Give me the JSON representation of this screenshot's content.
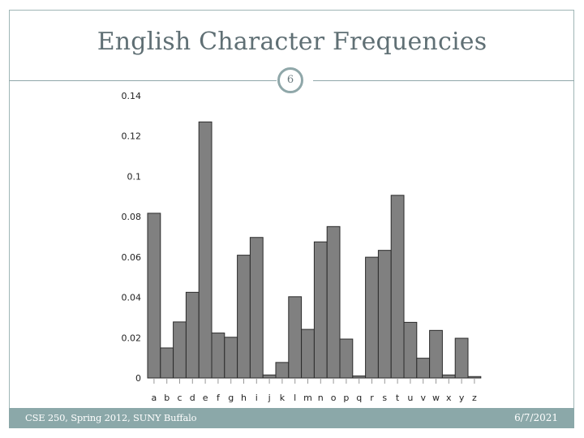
{
  "slide": {
    "title": "English Character Frequencies",
    "page_number": "6",
    "footer_left": "CSE 250, Spring 2012, SUNY Buffalo",
    "footer_right": "6/7/2021"
  },
  "colors": {
    "bar_fill": "#808080",
    "bar_stroke": "#2b2b2b",
    "accent": "#8ba8a9"
  },
  "chart_data": {
    "type": "bar",
    "title": "",
    "xlabel": "",
    "ylabel": "",
    "categories": [
      "a",
      "b",
      "c",
      "d",
      "e",
      "f",
      "g",
      "h",
      "i",
      "j",
      "k",
      "l",
      "m",
      "n",
      "o",
      "p",
      "q",
      "r",
      "s",
      "t",
      "u",
      "v",
      "w",
      "x",
      "y",
      "z"
    ],
    "values": [
      0.0817,
      0.0149,
      0.0278,
      0.0425,
      0.127,
      0.0223,
      0.0202,
      0.0609,
      0.0697,
      0.0015,
      0.0077,
      0.0403,
      0.0241,
      0.0675,
      0.0751,
      0.0193,
      0.001,
      0.0599,
      0.0633,
      0.0906,
      0.0276,
      0.0098,
      0.0236,
      0.0015,
      0.0197,
      0.0007
    ],
    "ylim": [
      0,
      0.14
    ],
    "yticks": [
      "0",
      "0.02",
      "0.04",
      "0.06",
      "0.08",
      "0.1",
      "0.12",
      "0.14"
    ],
    "ytick_values": [
      0,
      0.02,
      0.04,
      0.06,
      0.08,
      0.1,
      0.12,
      0.14
    ],
    "grid": false,
    "legend": "none"
  }
}
